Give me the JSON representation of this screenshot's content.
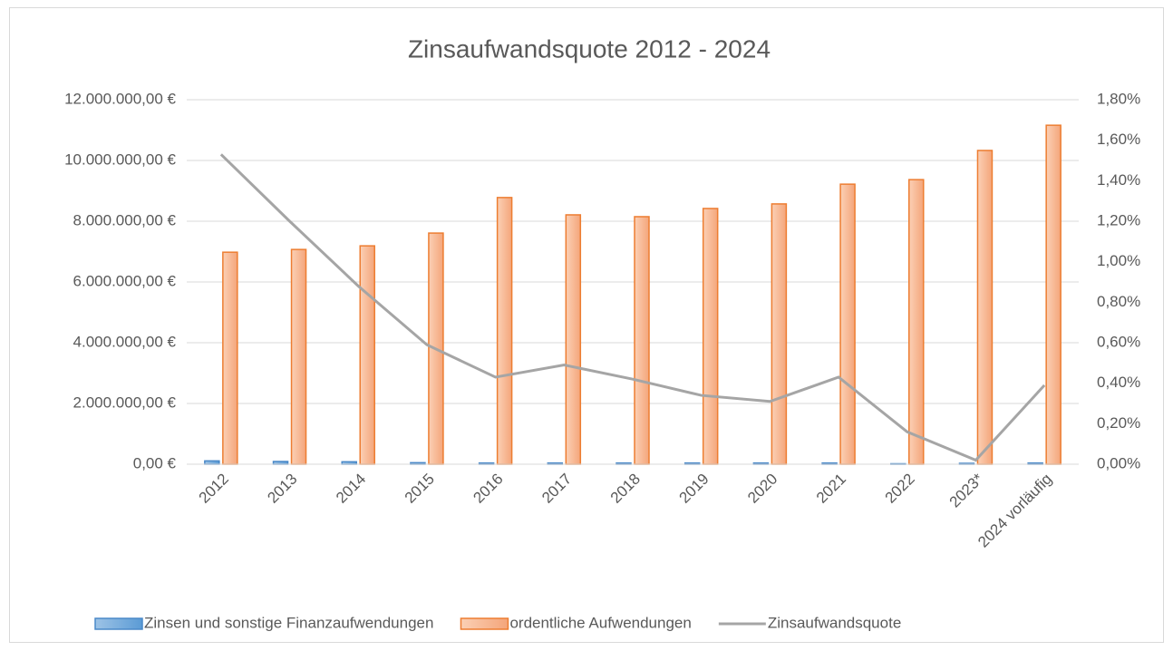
{
  "chart_data": {
    "type": "bar_line",
    "title": "Zinsaufwandsquote  2012 - 2024",
    "categories": [
      "2012",
      "2013",
      "2014",
      "2015",
      "2016",
      "2017",
      "2018",
      "2019",
      "2020",
      "2021",
      "2022",
      "2023*",
      "2024 vorläufig"
    ],
    "series": [
      {
        "name": "Zinsen und sonstige Finanzaufwendungen",
        "type": "bar",
        "axis": "y",
        "color": "#5b9bd5",
        "values": [
          110000,
          90000,
          80000,
          50000,
          40000,
          40000,
          40000,
          40000,
          40000,
          40000,
          15000,
          30000,
          40000
        ]
      },
      {
        "name": "ordentliche Aufwendungen",
        "type": "bar",
        "axis": "y",
        "color": "#f4b183",
        "values": [
          6980000,
          7070000,
          7190000,
          7610000,
          8780000,
          8210000,
          8150000,
          8420000,
          8570000,
          9220000,
          9370000,
          10330000,
          11160000
        ]
      },
      {
        "name": "Zinsaufwandsquote",
        "type": "line",
        "axis": "y2",
        "color": "#a5a5a5",
        "values": [
          1.53,
          1.2,
          0.88,
          0.59,
          0.43,
          0.49,
          0.42,
          0.34,
          0.31,
          0.43,
          0.16,
          0.02,
          0.39
        ]
      }
    ],
    "ylim": [
      0,
      12000000
    ],
    "yticks": [
      {
        "value": 0,
        "label": "0,00 €"
      },
      {
        "value": 2000000,
        "label": "2.000.000,00 €"
      },
      {
        "value": 4000000,
        "label": "4.000.000,00 €"
      },
      {
        "value": 6000000,
        "label": "6.000.000,00 €"
      },
      {
        "value": 8000000,
        "label": "8.000.000,00 €"
      },
      {
        "value": 10000000,
        "label": "10.000.000,00 €"
      },
      {
        "value": 12000000,
        "label": "12.000.000,00 €"
      }
    ],
    "y2lim": [
      0,
      1.8
    ],
    "y2ticks": [
      {
        "value": 0,
        "label": "0,00%"
      },
      {
        "value": 0.2,
        "label": "0,20%"
      },
      {
        "value": 0.4,
        "label": "0,40%"
      },
      {
        "value": 0.6,
        "label": "0,60%"
      },
      {
        "value": 0.8,
        "label": "0,80%"
      },
      {
        "value": 1.0,
        "label": "1,00%"
      },
      {
        "value": 1.2,
        "label": "1,20%"
      },
      {
        "value": 1.4,
        "label": "1,40%"
      },
      {
        "value": 1.6,
        "label": "1,60%"
      },
      {
        "value": 1.8,
        "label": "1,80%"
      }
    ],
    "grid": true,
    "legend": "bottom"
  }
}
